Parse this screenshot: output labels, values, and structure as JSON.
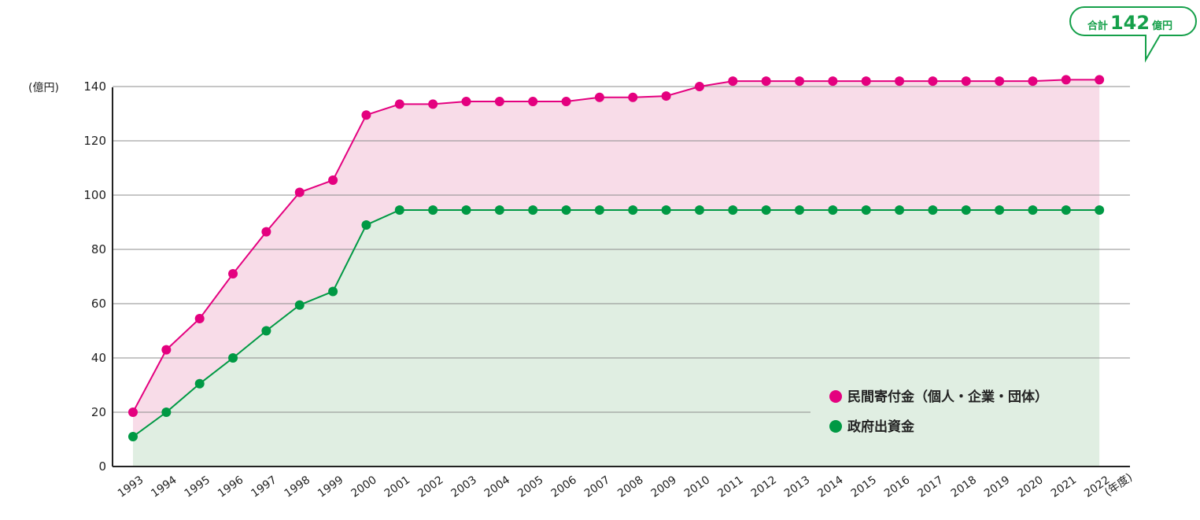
{
  "chart_data": {
    "type": "area",
    "y_unit_label": "(億円)",
    "x_unit_label": "(年度)",
    "categories": [
      "1993",
      "1994",
      "1995",
      "1996",
      "1997",
      "1998",
      "1999",
      "2000",
      "2001",
      "2002",
      "2003",
      "2004",
      "2005",
      "2006",
      "2007",
      "2008",
      "2009",
      "2010",
      "2011",
      "2012",
      "2013",
      "2014",
      "2015",
      "2016",
      "2017",
      "2018",
      "2019",
      "2020",
      "2021",
      "2022"
    ],
    "yticks": [
      "0",
      "20",
      "40",
      "60",
      "80",
      "100",
      "120",
      "140"
    ],
    "ylim": [
      0,
      140
    ],
    "grid": true,
    "legend_position": "bottom-right",
    "series": [
      {
        "name": "民間寄付金（個人・企業・団体）",
        "color": "#e4007f",
        "fill": "#f8dce8",
        "values": [
          20,
          43,
          54.5,
          71,
          86.5,
          101,
          105.5,
          129.5,
          133.5,
          133.5,
          134.5,
          134.5,
          134.5,
          134.5,
          136,
          136,
          136.5,
          140,
          142,
          142,
          142,
          142,
          142,
          142,
          142,
          142,
          142,
          142,
          142.5,
          142.5
        ]
      },
      {
        "name": "政府出資金",
        "color": "#009944",
        "fill": "#e0eee2",
        "values": [
          11,
          20,
          30.5,
          40,
          50,
          59.5,
          64.5,
          89,
          94.5,
          94.5,
          94.5,
          94.5,
          94.5,
          94.5,
          94.5,
          94.5,
          94.5,
          94.5,
          94.5,
          94.5,
          94.5,
          94.5,
          94.5,
          94.5,
          94.5,
          94.5,
          94.5,
          94.5,
          94.5,
          94.5
        ]
      }
    ],
    "callout": {
      "prefix": "合計",
      "value": "142",
      "suffix": "億円",
      "color": "#15a04a"
    }
  }
}
